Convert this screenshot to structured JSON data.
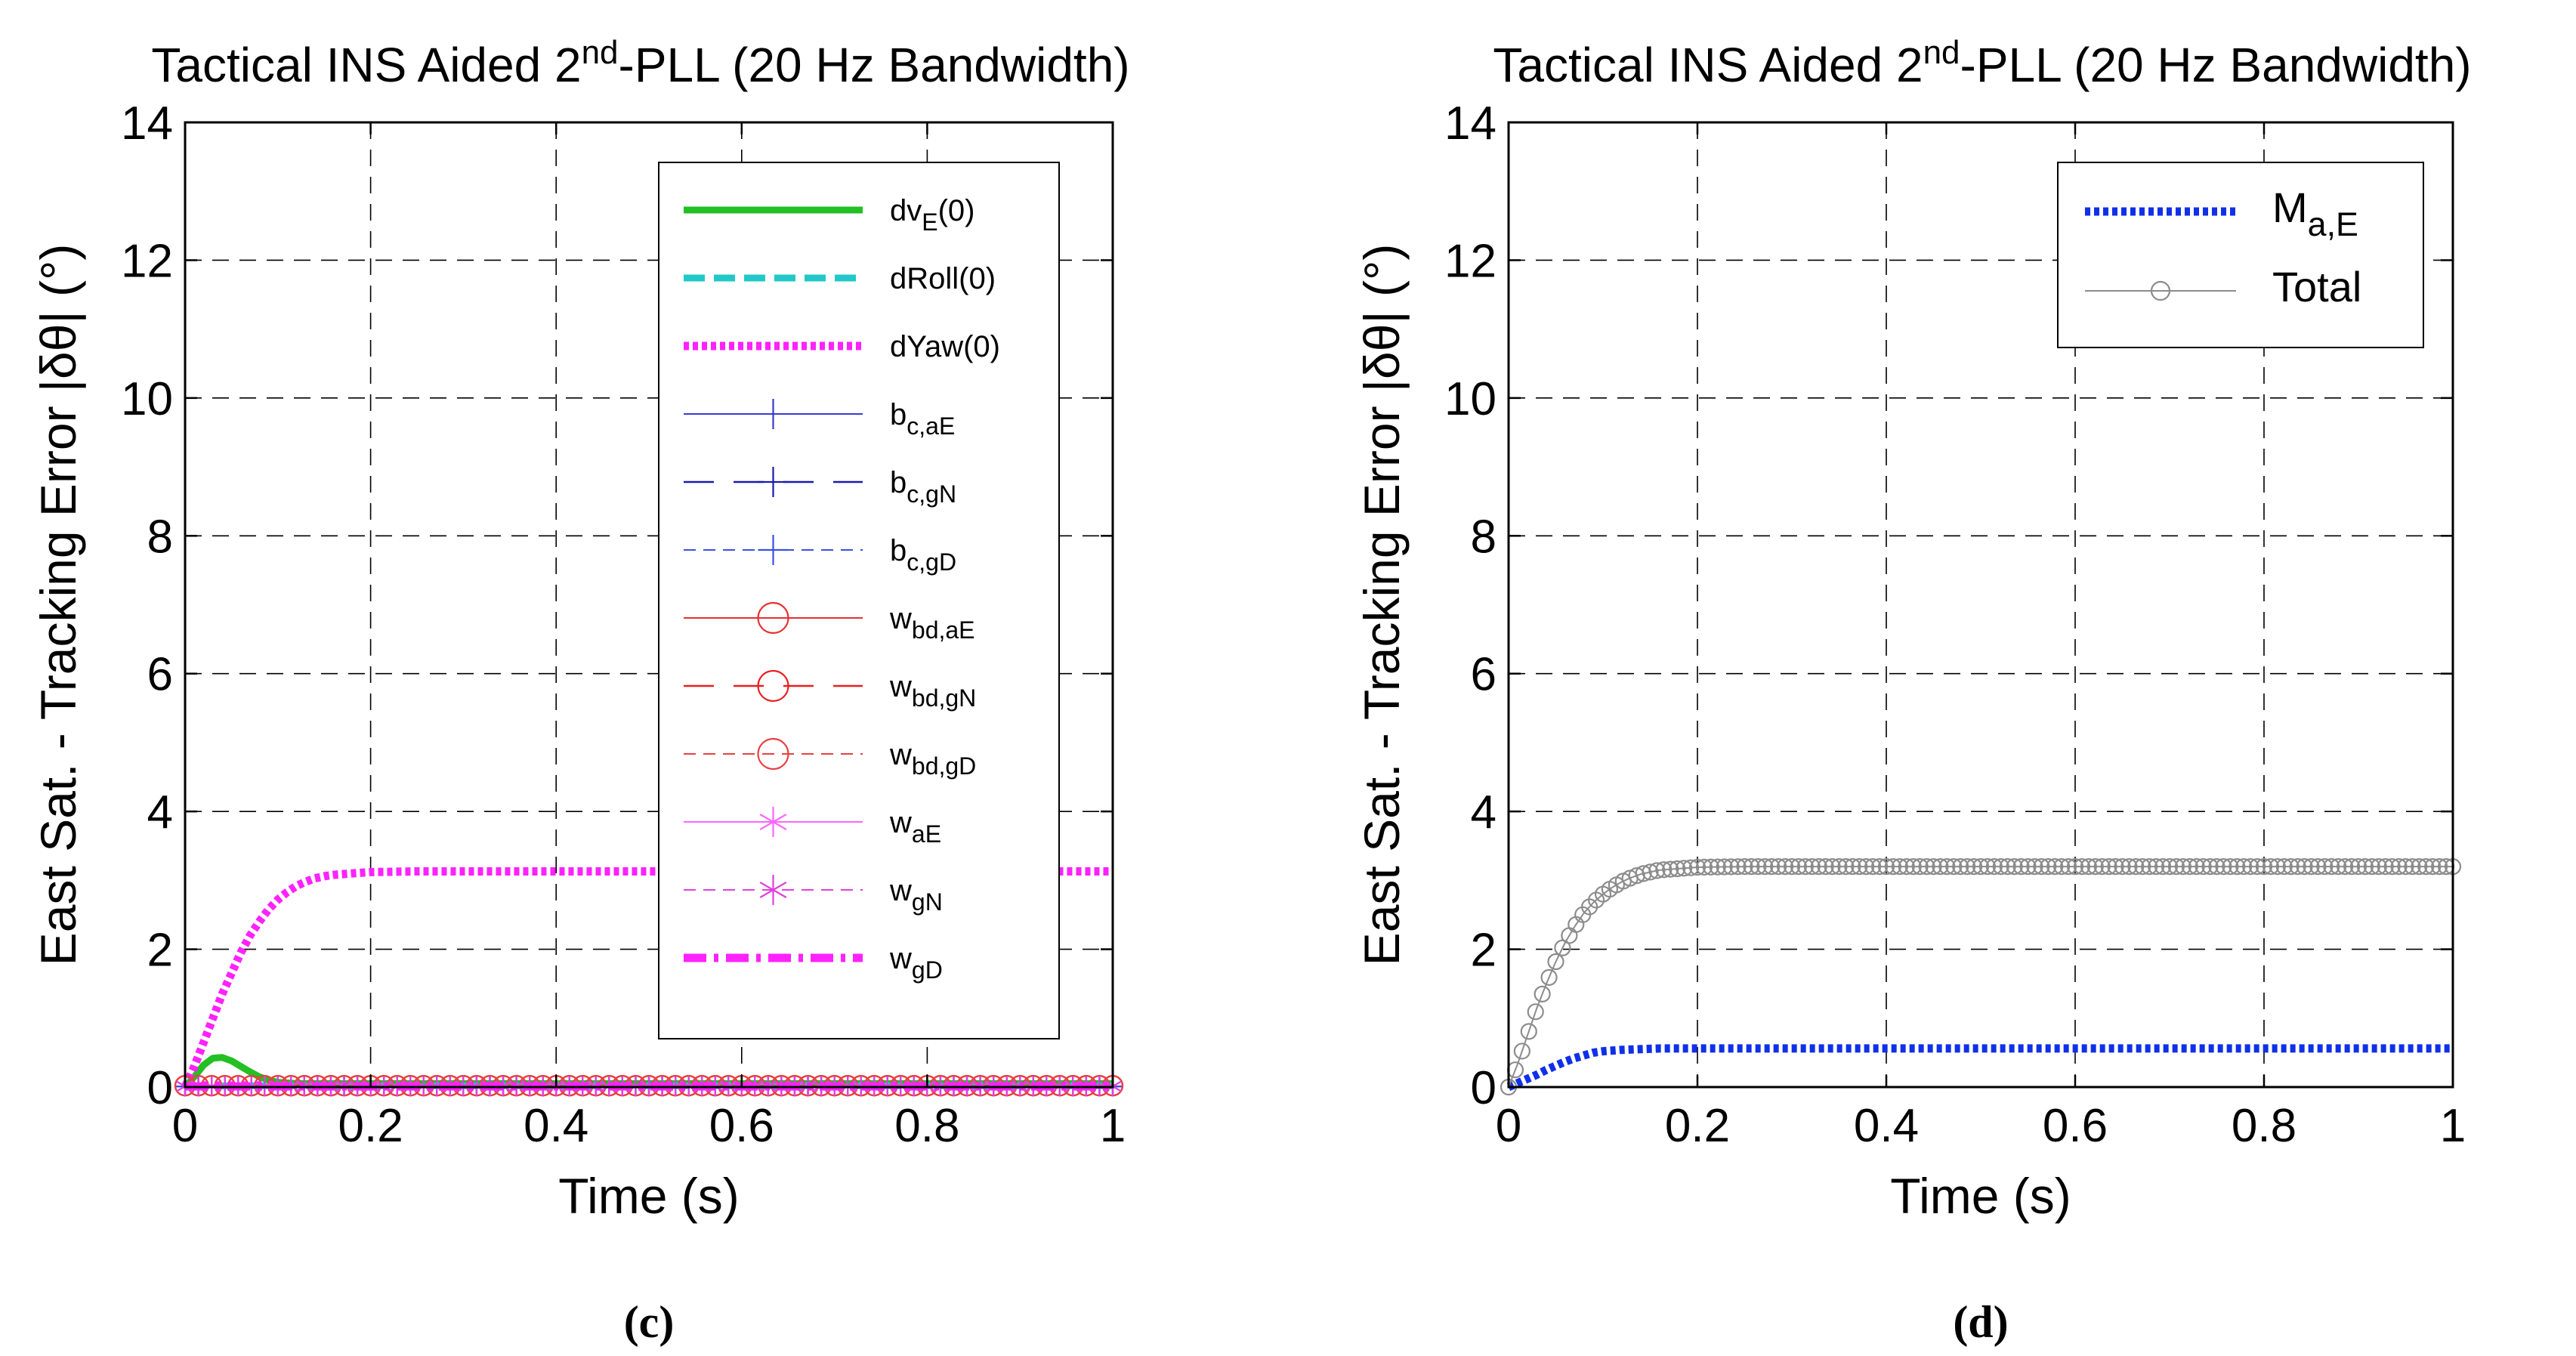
{
  "chart_data": [
    {
      "type": "line",
      "panel": "c",
      "caption": "(c)",
      "title_parts": [
        "Tactical INS Aided 2",
        "nd",
        "-PLL (20 Hz Bandwidth)"
      ],
      "xlabel": "Time (s)",
      "ylabel": "East Sat. - Tracking Error |δθ| (°)",
      "xlim": [
        0,
        1
      ],
      "ylim": [
        0,
        14
      ],
      "xticks": [
        0,
        0.2,
        0.4,
        0.6,
        0.8,
        1
      ],
      "xtick_labels": [
        "0",
        "0.2",
        "0.4",
        "0.6",
        "0.8",
        "1"
      ],
      "yticks": [
        0,
        2,
        4,
        6,
        8,
        10,
        12,
        14
      ],
      "ytick_labels": [
        "0",
        "2",
        "4",
        "6",
        "8",
        "10",
        "12",
        "14"
      ],
      "grid": true,
      "legend_position": "top-right",
      "series": [
        {
          "name": "dvE(0)",
          "label_main": "dv",
          "label_sub": "E",
          "label_suffix": "(0)",
          "color": "#22c022",
          "style": "solid-thick",
          "marker": "none",
          "x": [
            0,
            0.01,
            0.02,
            0.03,
            0.04,
            0.05,
            0.06,
            0.07,
            0.08,
            0.09,
            0.1,
            0.12,
            0.15,
            0.2,
            0.3,
            0.4,
            0.5,
            0.6,
            0.7,
            0.8,
            0.9,
            1.0
          ],
          "y": [
            0,
            0.15,
            0.32,
            0.42,
            0.43,
            0.38,
            0.3,
            0.22,
            0.15,
            0.1,
            0.07,
            0.05,
            0.05,
            0.05,
            0.05,
            0.05,
            0.05,
            0.05,
            0.05,
            0.05,
            0.05,
            0.05
          ]
        },
        {
          "name": "dRoll(0)",
          "label_main": "dRoll(0)",
          "label_sub": "",
          "label_suffix": "",
          "color": "#20c8c8",
          "style": "dashed-thick",
          "marker": "none",
          "x": [
            0,
            0.05,
            0.1,
            0.2,
            0.4,
            0.6,
            0.8,
            1.0
          ],
          "y": [
            0,
            0.02,
            0.02,
            0.02,
            0.02,
            0.02,
            0.02,
            0.02
          ]
        },
        {
          "name": "dYaw(0)",
          "label_main": "dYaw(0)",
          "label_sub": "",
          "label_suffix": "",
          "color": "#ff22ff",
          "style": "dotted-thick",
          "marker": "none",
          "x": [
            0,
            0.01,
            0.02,
            0.03,
            0.04,
            0.05,
            0.06,
            0.07,
            0.08,
            0.09,
            0.1,
            0.11,
            0.12,
            0.13,
            0.14,
            0.15,
            0.16,
            0.18,
            0.2,
            0.25,
            0.3,
            0.4,
            0.5,
            0.6,
            0.7,
            0.8,
            0.9,
            1.0
          ],
          "y": [
            0,
            0.3,
            0.65,
            1.0,
            1.35,
            1.65,
            1.95,
            2.2,
            2.4,
            2.58,
            2.72,
            2.83,
            2.92,
            2.98,
            3.03,
            3.06,
            3.08,
            3.1,
            3.12,
            3.13,
            3.13,
            3.13,
            3.13,
            3.13,
            3.13,
            3.13,
            3.13,
            3.13
          ]
        },
        {
          "name": "bc,aE",
          "label_main": "b",
          "label_sub": "c,aE",
          "label_suffix": "",
          "color": "#3a3ad0",
          "style": "solid-thin",
          "marker": "vbar",
          "x": [
            0,
            1
          ],
          "y": [
            0.01,
            0.01
          ]
        },
        {
          "name": "bc,gN",
          "label_main": "b",
          "label_sub": "c,gN",
          "label_suffix": "",
          "color": "#1a1ab0",
          "style": "longdash-thin",
          "marker": "plus",
          "x": [
            0,
            1
          ],
          "y": [
            0.01,
            0.01
          ]
        },
        {
          "name": "bc,gD",
          "label_main": "b",
          "label_sub": "c,gD",
          "label_suffix": "",
          "color": "#3a50e0",
          "style": "dashed-thin",
          "marker": "plus",
          "x": [
            0,
            1
          ],
          "y": [
            0.01,
            0.01
          ]
        },
        {
          "name": "wbd,aE",
          "label_main": "w",
          "label_sub": "bd,aE",
          "label_suffix": "",
          "color": "#e83030",
          "style": "solid-thin",
          "marker": "circle",
          "x": [
            0,
            1
          ],
          "y": [
            0.02,
            0.02
          ]
        },
        {
          "name": "wbd,gN",
          "label_main": "w",
          "label_sub": "bd,gN",
          "label_suffix": "",
          "color": "#e82020",
          "style": "longdash-thin",
          "marker": "circle",
          "x": [
            0,
            1
          ],
          "y": [
            0.02,
            0.02
          ]
        },
        {
          "name": "wbd,gD",
          "label_main": "w",
          "label_sub": "bd,gD",
          "label_suffix": "",
          "color": "#e84040",
          "style": "dashed-thin",
          "marker": "circle",
          "x": [
            0,
            1
          ],
          "y": [
            0.02,
            0.02
          ]
        },
        {
          "name": "waE",
          "label_main": "w",
          "label_sub": "aE",
          "label_suffix": "",
          "color": "#ff66ff",
          "style": "solid-thin",
          "marker": "asterisk",
          "x": [
            0,
            1
          ],
          "y": [
            0.01,
            0.01
          ]
        },
        {
          "name": "wgN",
          "label_main": "w",
          "label_sub": "gN",
          "label_suffix": "",
          "color": "#e040e0",
          "style": "dashed-thin",
          "marker": "asterisk",
          "x": [
            0,
            1
          ],
          "y": [
            0.01,
            0.01
          ]
        },
        {
          "name": "wgD",
          "label_main": "w",
          "label_sub": "gD",
          "label_suffix": "",
          "color": "#ff22ff",
          "style": "dashdot-thick",
          "marker": "none",
          "x": [
            0,
            1
          ],
          "y": [
            0.01,
            0.01
          ]
        }
      ]
    },
    {
      "type": "line",
      "panel": "d",
      "caption": "(d)",
      "title_parts": [
        "Tactical INS Aided 2",
        "nd",
        "-PLL (20 Hz Bandwidth)"
      ],
      "xlabel": "Time (s)",
      "ylabel": "East Sat. - Tracking Error |δθ| (°)",
      "xlim": [
        0,
        1
      ],
      "ylim": [
        0,
        14
      ],
      "xticks": [
        0,
        0.2,
        0.4,
        0.6,
        0.8,
        1
      ],
      "xtick_labels": [
        "0",
        "0.2",
        "0.4",
        "0.6",
        "0.8",
        "1"
      ],
      "yticks": [
        0,
        2,
        4,
        6,
        8,
        10,
        12,
        14
      ],
      "ytick_labels": [
        "0",
        "2",
        "4",
        "6",
        "8",
        "10",
        "12",
        "14"
      ],
      "grid": true,
      "legend_position": "top-right",
      "series": [
        {
          "name": "Ma,E",
          "label_main": "M",
          "label_sub": "a,E",
          "label_suffix": "",
          "color": "#1030e8",
          "style": "dotted-thick",
          "marker": "none",
          "x": [
            0,
            0.01,
            0.02,
            0.03,
            0.04,
            0.05,
            0.06,
            0.07,
            0.08,
            0.09,
            0.1,
            0.12,
            0.14,
            0.16,
            0.2,
            0.3,
            0.4,
            0.5,
            0.6,
            0.7,
            0.8,
            0.9,
            1.0
          ],
          "y": [
            0,
            0.06,
            0.12,
            0.18,
            0.25,
            0.31,
            0.37,
            0.42,
            0.46,
            0.5,
            0.52,
            0.54,
            0.55,
            0.56,
            0.56,
            0.56,
            0.56,
            0.56,
            0.56,
            0.56,
            0.56,
            0.56,
            0.56
          ]
        },
        {
          "name": "Total",
          "label_main": "Total",
          "label_sub": "",
          "label_suffix": "",
          "color": "#8c8c8c",
          "style": "solid-thin",
          "marker": "circle-open",
          "x": [
            0,
            0.01,
            0.02,
            0.03,
            0.04,
            0.05,
            0.06,
            0.07,
            0.08,
            0.09,
            0.1,
            0.11,
            0.12,
            0.13,
            0.14,
            0.15,
            0.16,
            0.18,
            0.2,
            0.25,
            0.3,
            0.4,
            0.5,
            0.6,
            0.7,
            0.8,
            0.9,
            1.0
          ],
          "y": [
            0,
            0.35,
            0.75,
            1.15,
            1.5,
            1.82,
            2.1,
            2.33,
            2.53,
            2.68,
            2.8,
            2.9,
            2.98,
            3.04,
            3.09,
            3.12,
            3.15,
            3.17,
            3.19,
            3.2,
            3.2,
            3.2,
            3.2,
            3.2,
            3.2,
            3.2,
            3.2,
            3.2
          ]
        }
      ]
    }
  ]
}
